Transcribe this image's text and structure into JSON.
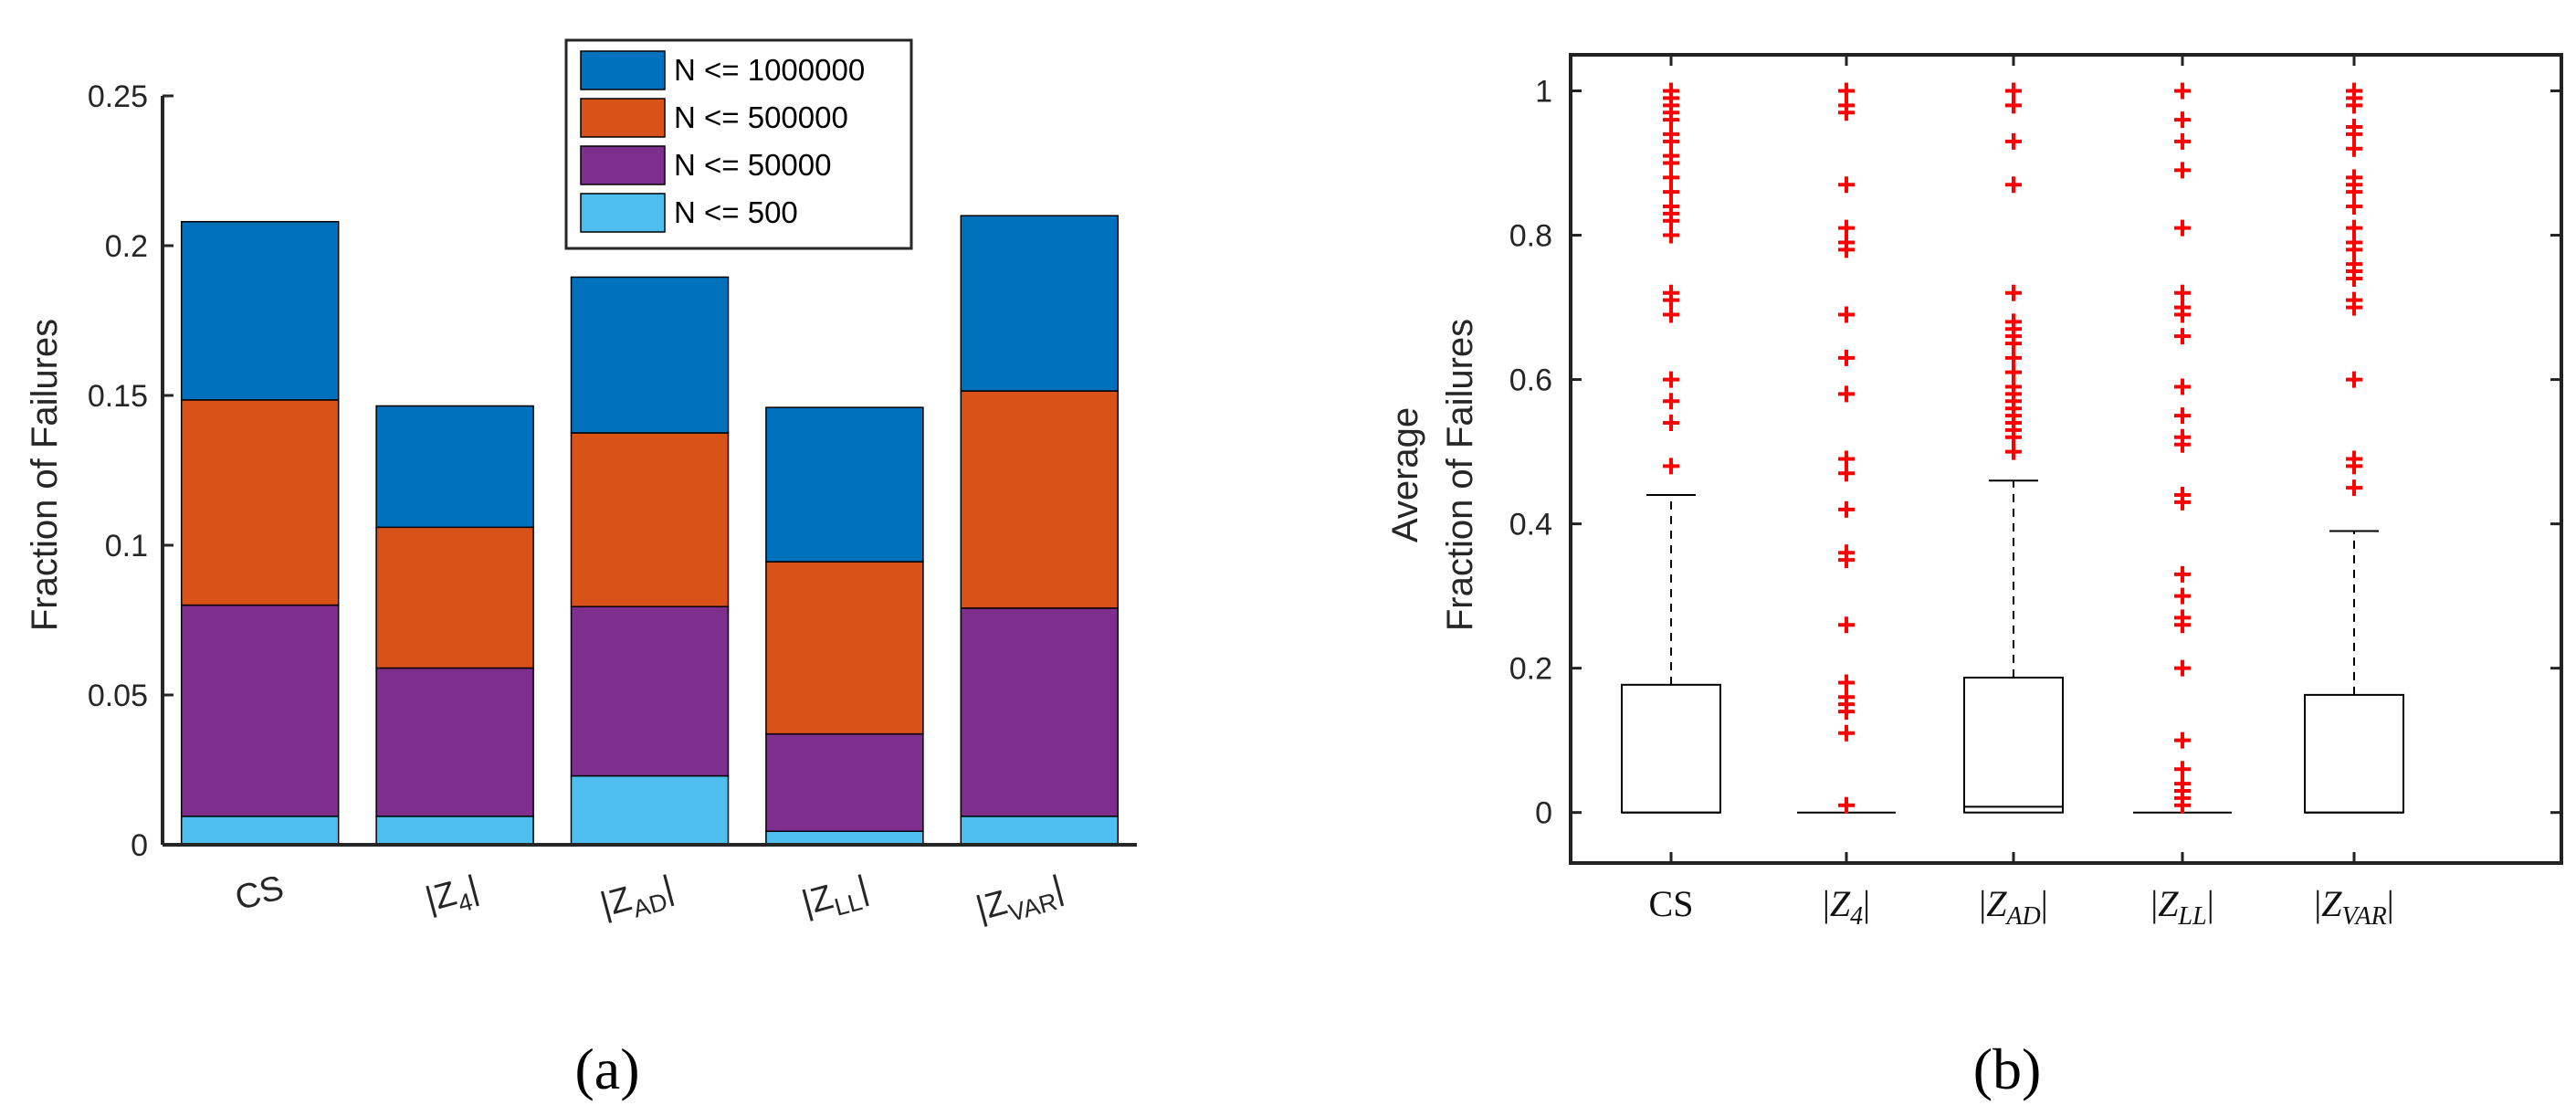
{
  "chart_data": [
    {
      "type": "bar",
      "stacked": true,
      "panel_label": "(a)",
      "ylabel": "Fraction of Failures",
      "ylim": [
        0,
        0.25
      ],
      "yticks": [
        "0",
        "0.05",
        "0.1",
        "0.15",
        "0.2",
        "0.25"
      ],
      "categories": [
        "CS",
        "|Z4|",
        "|ZAD|",
        "|ZLL|",
        "|ZVAR|"
      ],
      "category_labels": [
        {
          "base": "CS",
          "sub": ""
        },
        {
          "base": "|Z",
          "sub": "4",
          "tail": "|"
        },
        {
          "base": "|Z",
          "sub": "AD",
          "tail": "|"
        },
        {
          "base": "|Z",
          "sub": "LL",
          "tail": "|"
        },
        {
          "base": "|Z",
          "sub": "VAR",
          "tail": "|"
        }
      ],
      "legend_position": "top-right",
      "series": [
        {
          "name": "N <= 500",
          "color": "#4DBEEE",
          "values": [
            0.0095,
            0.0095,
            0.023,
            0.0045,
            0.0095
          ]
        },
        {
          "name": "N <= 50000",
          "color": "#7E2F8E",
          "values": [
            0.0705,
            0.0495,
            0.0565,
            0.0325,
            0.0695
          ]
        },
        {
          "name": "N <= 500000",
          "color": "#D95319",
          "values": [
            0.0685,
            0.047,
            0.058,
            0.0575,
            0.0725
          ]
        },
        {
          "name": "N <= 1000000",
          "color": "#0072BD",
          "values": [
            0.0595,
            0.0405,
            0.052,
            0.0515,
            0.0585
          ]
        }
      ],
      "legend_order": [
        "N <= 1000000",
        "N <= 500000",
        "N <= 50000",
        "N <= 500"
      ]
    },
    {
      "type": "box",
      "panel_label": "(b)",
      "ylabel_lines": [
        "Average",
        "Fraction of Failures"
      ],
      "ylim": [
        -0.07,
        1.05
      ],
      "yticks": [
        "0",
        "0.2",
        "0.4",
        "0.6",
        "0.8",
        "1"
      ],
      "categories": [
        "CS",
        "|Z4|",
        "|ZAD|",
        "|ZLL|",
        "|ZVAR|"
      ],
      "category_labels": [
        {
          "base": "CS",
          "sub": ""
        },
        {
          "base": "|Z",
          "sub": "4",
          "tail": "|"
        },
        {
          "base": "|Z",
          "sub": "AD",
          "tail": "|"
        },
        {
          "base": "|Z",
          "sub": "LL",
          "tail": "|"
        },
        {
          "base": "|Z",
          "sub": "VAR",
          "tail": "|"
        }
      ],
      "outlier_color": "#FF0000",
      "boxes": [
        {
          "q1": 0,
          "median": 0,
          "q3": 0.177,
          "whisker_low": 0,
          "whisker_high": 0.44,
          "outliers": [
            0.48,
            0.54,
            0.57,
            0.6,
            0.69,
            0.71,
            0.72,
            0.8,
            0.82,
            0.83,
            0.84,
            0.86,
            0.88,
            0.9,
            0.91,
            0.93,
            0.94,
            0.96,
            0.97,
            0.98,
            0.99,
            1.0
          ]
        },
        {
          "q1": 0,
          "median": 0,
          "q3": 0,
          "whisker_low": 0,
          "whisker_high": 0,
          "outliers": [
            0.01,
            0.11,
            0.14,
            0.15,
            0.16,
            0.18,
            0.26,
            0.35,
            0.36,
            0.42,
            0.47,
            0.49,
            0.58,
            0.63,
            0.69,
            0.78,
            0.79,
            0.81,
            0.87,
            0.97,
            0.98,
            1.0
          ]
        },
        {
          "q1": 0,
          "median": 0.008,
          "q3": 0.187,
          "whisker_low": 0,
          "whisker_high": 0.46,
          "outliers": [
            0.5,
            0.52,
            0.53,
            0.54,
            0.55,
            0.56,
            0.57,
            0.58,
            0.59,
            0.61,
            0.63,
            0.65,
            0.66,
            0.67,
            0.68,
            0.72,
            0.87,
            0.93,
            0.98,
            1.0
          ]
        },
        {
          "q1": 0,
          "median": 0,
          "q3": 0,
          "whisker_low": 0,
          "whisker_high": 0,
          "outliers": [
            0.01,
            0.02,
            0.03,
            0.04,
            0.06,
            0.1,
            0.2,
            0.26,
            0.27,
            0.3,
            0.33,
            0.43,
            0.44,
            0.51,
            0.52,
            0.55,
            0.59,
            0.66,
            0.69,
            0.7,
            0.72,
            0.81,
            0.89,
            0.93,
            0.96,
            1.0
          ]
        },
        {
          "q1": 0,
          "median": 0,
          "q3": 0.163,
          "whisker_low": 0,
          "whisker_high": 0.39,
          "outliers": [
            0.45,
            0.48,
            0.49,
            0.6,
            0.7,
            0.71,
            0.74,
            0.75,
            0.76,
            0.78,
            0.79,
            0.81,
            0.84,
            0.86,
            0.87,
            0.88,
            0.92,
            0.94,
            0.95,
            0.98,
            0.99,
            1.0
          ]
        }
      ]
    }
  ]
}
